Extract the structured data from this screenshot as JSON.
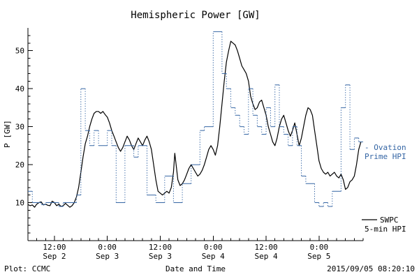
{
  "title": "Hemispheric Power [GW]",
  "footer": {
    "left": "Plot: CCMC",
    "right": "2015/09/05 08:20:10"
  },
  "colors": {
    "ovation": "#3465a4",
    "swpc": "#000000"
  },
  "legend": {
    "ovation_line1": "- Ovation",
    "ovation_line2": "Prime HPI",
    "swpc_line1": "SWPC",
    "swpc_line2": "5-min HPI"
  },
  "chart_data": {
    "type": "line",
    "title": "Hemispheric Power [GW]",
    "xlabel": "Date and Time",
    "ylabel": "P [GW]",
    "x_unit": "hours since 2015-09-02 00:00",
    "xlim": [
      6,
      82
    ],
    "ylim": [
      0,
      56
    ],
    "yticks": [
      10,
      20,
      30,
      40,
      50
    ],
    "xticks": [
      {
        "hour": 12,
        "time": "12:00",
        "date": "Sep 2"
      },
      {
        "hour": 24,
        "time": "0:00",
        "date": "Sep 3"
      },
      {
        "hour": 36,
        "time": "12:00",
        "date": "Sep 3"
      },
      {
        "hour": 48,
        "time": "0:00",
        "date": "Sep 4"
      },
      {
        "hour": 60,
        "time": "12:00",
        "date": "Sep 4"
      },
      {
        "hour": 72,
        "time": "0:00",
        "date": "Sep 5"
      }
    ],
    "grid": false,
    "legend_position": "right",
    "series": [
      {
        "name": "SWPC 5-min HPI",
        "style": "solid",
        "color": "#000000",
        "points": [
          [
            6,
            9.5
          ],
          [
            6.5,
            9.2
          ],
          [
            7,
            9.4
          ],
          [
            7.5,
            8.8
          ],
          [
            8,
            9.6
          ],
          [
            8.5,
            10.0
          ],
          [
            9,
            10.2
          ],
          [
            9.5,
            9.4
          ],
          [
            10,
            9.6
          ],
          [
            10.5,
            9.3
          ],
          [
            11,
            9.2
          ],
          [
            11.5,
            10.4
          ],
          [
            12,
            10.0
          ],
          [
            12.5,
            9.2
          ],
          [
            13,
            9.6
          ],
          [
            13.5,
            9.0
          ],
          [
            14,
            9.2
          ],
          [
            14.5,
            9.8
          ],
          [
            15,
            9.3
          ],
          [
            15.5,
            8.8
          ],
          [
            16,
            9.2
          ],
          [
            16.5,
            10.0
          ],
          [
            17,
            11.5
          ],
          [
            17.5,
            14.0
          ],
          [
            18,
            18.0
          ],
          [
            18.5,
            22.0
          ],
          [
            19,
            25.5
          ],
          [
            19.5,
            27.5
          ],
          [
            20,
            30.0
          ],
          [
            20.5,
            32.0
          ],
          [
            21,
            33.5
          ],
          [
            21.5,
            34.0
          ],
          [
            22,
            34.0
          ],
          [
            22.5,
            33.5
          ],
          [
            23,
            34.0
          ],
          [
            23.5,
            33.2
          ],
          [
            24,
            32.5
          ],
          [
            24.5,
            31.0
          ],
          [
            25,
            29.0
          ],
          [
            25.5,
            27.5
          ],
          [
            26,
            26.0
          ],
          [
            26.5,
            24.5
          ],
          [
            27,
            23.5
          ],
          [
            27.5,
            24.5
          ],
          [
            28,
            26.0
          ],
          [
            28.5,
            27.5
          ],
          [
            29,
            26.5
          ],
          [
            29.5,
            25.0
          ],
          [
            30,
            24.0
          ],
          [
            30.5,
            25.5
          ],
          [
            31,
            27.0
          ],
          [
            31.5,
            26.0
          ],
          [
            32,
            25.0
          ],
          [
            32.5,
            26.5
          ],
          [
            33,
            27.5
          ],
          [
            33.5,
            26.0
          ],
          [
            34,
            24.0
          ],
          [
            34.5,
            20.0
          ],
          [
            35,
            16.0
          ],
          [
            35.5,
            13.0
          ],
          [
            36,
            12.5
          ],
          [
            36.5,
            12.0
          ],
          [
            37,
            12.5
          ],
          [
            37.5,
            13.0
          ],
          [
            38,
            12.5
          ],
          [
            38.5,
            14.0
          ],
          [
            39,
            18.0
          ],
          [
            39.3,
            23.0
          ],
          [
            39.6,
            20.0
          ],
          [
            40,
            16.0
          ],
          [
            40.5,
            14.5
          ],
          [
            41,
            15.0
          ],
          [
            41.5,
            16.0
          ],
          [
            42,
            17.5
          ],
          [
            42.5,
            19.0
          ],
          [
            43,
            20.0
          ],
          [
            43.5,
            19.0
          ],
          [
            44,
            18.0
          ],
          [
            44.5,
            17.0
          ],
          [
            45,
            17.5
          ],
          [
            45.5,
            18.5
          ],
          [
            46,
            20.0
          ],
          [
            46.5,
            22.0
          ],
          [
            47,
            24.0
          ],
          [
            47.5,
            25.0
          ],
          [
            48,
            24.0
          ],
          [
            48.5,
            22.5
          ],
          [
            49,
            25.0
          ],
          [
            49.5,
            30.0
          ],
          [
            50,
            36.0
          ],
          [
            50.5,
            42.0
          ],
          [
            51,
            47.0
          ],
          [
            51.5,
            50.0
          ],
          [
            52,
            52.5
          ],
          [
            52.5,
            52.0
          ],
          [
            53,
            51.5
          ],
          [
            53.5,
            50.0
          ],
          [
            54,
            48.0
          ],
          [
            54.5,
            46.0
          ],
          [
            55,
            45.0
          ],
          [
            55.5,
            44.0
          ],
          [
            56,
            42.0
          ],
          [
            56.5,
            38.0
          ],
          [
            57,
            36.0
          ],
          [
            57.5,
            34.5
          ],
          [
            58,
            35.0
          ],
          [
            58.5,
            36.5
          ],
          [
            59,
            37.0
          ],
          [
            59.5,
            35.0
          ],
          [
            60,
            33.0
          ],
          [
            60.5,
            30.0
          ],
          [
            61,
            28.0
          ],
          [
            61.5,
            26.0
          ],
          [
            62,
            25.0
          ],
          [
            62.5,
            27.0
          ],
          [
            63,
            30.0
          ],
          [
            63.5,
            32.0
          ],
          [
            64,
            33.0
          ],
          [
            64.5,
            31.0
          ],
          [
            65,
            29.0
          ],
          [
            65.5,
            27.5
          ],
          [
            66,
            29.0
          ],
          [
            66.5,
            31.0
          ],
          [
            67,
            28.0
          ],
          [
            67.5,
            25.0
          ],
          [
            68,
            27.0
          ],
          [
            68.5,
            30.0
          ],
          [
            69,
            33.0
          ],
          [
            69.5,
            35.0
          ],
          [
            70,
            34.5
          ],
          [
            70.5,
            33.0
          ],
          [
            71,
            29.0
          ],
          [
            71.5,
            25.0
          ],
          [
            72,
            21.0
          ],
          [
            72.5,
            19.0
          ],
          [
            73,
            18.0
          ],
          [
            73.5,
            17.5
          ],
          [
            74,
            18.0
          ],
          [
            74.5,
            17.0
          ],
          [
            75,
            17.5
          ],
          [
            75.5,
            18.0
          ],
          [
            76,
            17.0
          ],
          [
            76.5,
            16.5
          ],
          [
            77,
            17.5
          ],
          [
            77.5,
            16.0
          ],
          [
            78,
            13.5
          ],
          [
            78.5,
            14.0
          ],
          [
            79,
            15.5
          ],
          [
            79.5,
            16.0
          ],
          [
            80,
            17.0
          ],
          [
            80.5,
            20.0
          ],
          [
            81,
            24.0
          ],
          [
            81.5,
            26.0
          ]
        ]
      },
      {
        "name": "Ovation Prime HPI",
        "style": "step-dotted",
        "color": "#3465a4",
        "points": [
          [
            6,
            13
          ],
          [
            7,
            10
          ],
          [
            8,
            10
          ],
          [
            9,
            9.5
          ],
          [
            10,
            10
          ],
          [
            11,
            10
          ],
          [
            12,
            10
          ],
          [
            13,
            9
          ],
          [
            14,
            10
          ],
          [
            15,
            10
          ],
          [
            16,
            10
          ],
          [
            17,
            12
          ],
          [
            18,
            40
          ],
          [
            19,
            29
          ],
          [
            20,
            25
          ],
          [
            21,
            29
          ],
          [
            22,
            25
          ],
          [
            23,
            25
          ],
          [
            24,
            29
          ],
          [
            25,
            25
          ],
          [
            26,
            10
          ],
          [
            27,
            10
          ],
          [
            28,
            25
          ],
          [
            29,
            25
          ],
          [
            30,
            22
          ],
          [
            31,
            25
          ],
          [
            32,
            25
          ],
          [
            33,
            12
          ],
          [
            34,
            12
          ],
          [
            35,
            10
          ],
          [
            36,
            10
          ],
          [
            37,
            17
          ],
          [
            38,
            17
          ],
          [
            39,
            10
          ],
          [
            40,
            10
          ],
          [
            41,
            15
          ],
          [
            42,
            15
          ],
          [
            43,
            20
          ],
          [
            44,
            20
          ],
          [
            45,
            29
          ],
          [
            46,
            30
          ],
          [
            47,
            30
          ],
          [
            48,
            55
          ],
          [
            49,
            55
          ],
          [
            50,
            44
          ],
          [
            51,
            40
          ],
          [
            52,
            35
          ],
          [
            53,
            33
          ],
          [
            54,
            30
          ],
          [
            55,
            28
          ],
          [
            56,
            40
          ],
          [
            57,
            33
          ],
          [
            58,
            30
          ],
          [
            59,
            28
          ],
          [
            60,
            35
          ],
          [
            61,
            30
          ],
          [
            62,
            41
          ],
          [
            63,
            30
          ],
          [
            64,
            28
          ],
          [
            65,
            25
          ],
          [
            66,
            30
          ],
          [
            67,
            25
          ],
          [
            68,
            17
          ],
          [
            69,
            15
          ],
          [
            70,
            15
          ],
          [
            71,
            10
          ],
          [
            72,
            9
          ],
          [
            73,
            10
          ],
          [
            74,
            9
          ],
          [
            75,
            13
          ],
          [
            76,
            13
          ],
          [
            77,
            35
          ],
          [
            78,
            41
          ],
          [
            79,
            24
          ],
          [
            80,
            27
          ],
          [
            81,
            26
          ]
        ]
      }
    ]
  }
}
